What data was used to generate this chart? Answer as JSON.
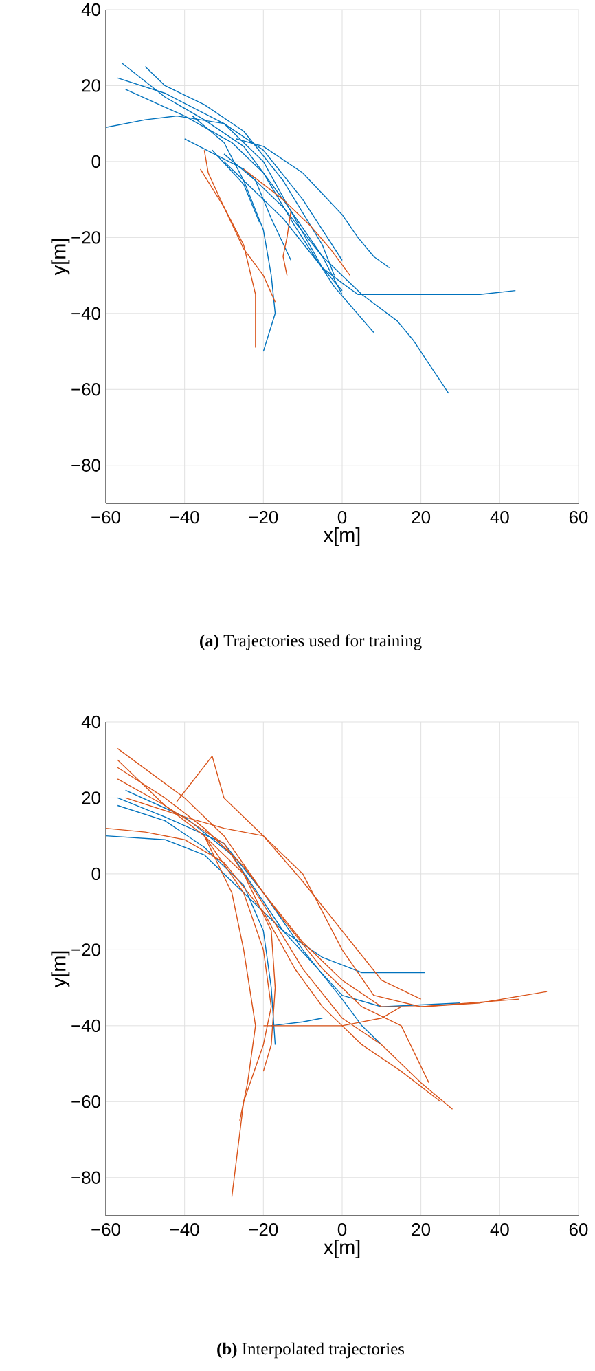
{
  "chart_data": [
    {
      "type": "line",
      "xlabel": "x[m]",
      "ylabel": "y[m]",
      "annotations": [
        "**(a)** Trajectories used for training"
      ],
      "grid": true,
      "xlim": [
        -60,
        60
      ],
      "ylim": [
        -90,
        40
      ],
      "xticks": [
        {
          "value": -60,
          "label": "−60"
        },
        {
          "value": -40,
          "label": "−40"
        },
        {
          "value": -20,
          "label": "−20"
        },
        0,
        20,
        40,
        60
      ],
      "yticks": [
        {
          "value": -80,
          "label": "−80"
        },
        {
          "value": -60,
          "label": "−60"
        },
        {
          "value": -40,
          "label": "−40"
        },
        {
          "value": -20,
          "label": "−20"
        },
        0,
        20,
        40
      ],
      "series": [
        {
          "color": "#0072bd",
          "x": [
            -40,
            -25,
            -15,
            -5,
            5,
            14,
            18,
            27
          ],
          "values": [
            6,
            -2,
            -12,
            -25,
            -35,
            -42,
            -47,
            -61
          ]
        },
        {
          "color": "#0072bd",
          "x": [
            -30,
            -15,
            -5,
            0,
            4,
            20,
            35,
            44
          ],
          "values": [
            0,
            -15,
            -28,
            -32,
            -35,
            -35,
            -35,
            -34
          ]
        },
        {
          "color": "#0072bd",
          "x": [
            -27,
            -20,
            -10,
            0,
            4,
            8,
            12
          ],
          "values": [
            6,
            4,
            -3,
            -14,
            -20,
            -25,
            -28
          ]
        },
        {
          "color": "#0072bd",
          "x": [
            -55,
            -40,
            -28,
            -20,
            -12,
            -2,
            8
          ],
          "values": [
            19,
            12,
            5,
            -3,
            -17,
            -33,
            -45
          ]
        },
        {
          "color": "#0072bd",
          "x": [
            -56,
            -45,
            -35,
            -25,
            -15,
            -5,
            0
          ],
          "values": [
            26,
            17,
            11,
            4,
            -10,
            -25,
            -35
          ]
        },
        {
          "color": "#0072bd",
          "x": [
            -50,
            -45,
            -35,
            -25,
            -15,
            -5,
            -2
          ],
          "values": [
            25,
            20,
            15,
            8,
            -5,
            -22,
            -30
          ]
        },
        {
          "color": "#0072bd",
          "x": [
            -60,
            -50,
            -42,
            -30,
            -20,
            -10,
            0
          ],
          "values": [
            9,
            11,
            12,
            10,
            3,
            -10,
            -26
          ]
        },
        {
          "color": "#0072bd",
          "x": [
            -38,
            -30,
            -25,
            -20,
            -18,
            -17,
            -20
          ],
          "values": [
            12,
            5,
            -5,
            -18,
            -30,
            -40,
            -50
          ]
        },
        {
          "color": "#0072bd",
          "x": [
            -33,
            -25,
            -21
          ],
          "values": [
            3,
            -6,
            -16
          ]
        },
        {
          "color": "#0072bd",
          "x": [
            -30,
            -22,
            -18,
            -13
          ],
          "values": [
            2,
            -5,
            -15,
            -26
          ]
        },
        {
          "color": "#0072bd",
          "x": [
            -57,
            -45,
            -30,
            -20,
            -12,
            -5,
            0
          ],
          "values": [
            22,
            18,
            10,
            0,
            -15,
            -28,
            -34
          ]
        },
        {
          "color": "#d95319",
          "x": [
            -35,
            -34,
            -30,
            -25,
            -22,
            -22
          ],
          "values": [
            3,
            -3,
            -12,
            -22,
            -35,
            -49
          ]
        },
        {
          "color": "#d95319",
          "x": [
            -36,
            -30,
            -25,
            -20,
            -17
          ],
          "values": [
            -2,
            -12,
            -23,
            -30,
            -37
          ]
        },
        {
          "color": "#d95319",
          "x": [
            -25,
            -15,
            -8,
            -3,
            2
          ],
          "values": [
            -2,
            -10,
            -17,
            -23,
            -30
          ]
        },
        {
          "color": "#d95319",
          "x": [
            -13,
            -14,
            -15,
            -14
          ],
          "values": [
            -13,
            -20,
            -25,
            -30
          ]
        }
      ]
    },
    {
      "type": "line",
      "xlabel": "x[m]",
      "ylabel": "y[m]",
      "annotations": [
        "**(b)** Interpolated trajectories"
      ],
      "grid": true,
      "xlim": [
        -60,
        60
      ],
      "ylim": [
        -90,
        40
      ],
      "xticks": [
        {
          "value": -60,
          "label": "−60"
        },
        {
          "value": -40,
          "label": "−40"
        },
        {
          "value": -20,
          "label": "−20"
        },
        0,
        20,
        40,
        60
      ],
      "yticks": [
        {
          "value": -80,
          "label": "−80"
        },
        {
          "value": -60,
          "label": "−60"
        },
        {
          "value": -40,
          "label": "−40"
        },
        {
          "value": -20,
          "label": "−20"
        },
        0,
        20,
        40
      ],
      "series": [
        {
          "color": "#0072bd",
          "x": [
            -60,
            -45,
            -35,
            -25,
            -15,
            -5,
            5,
            10,
            21
          ],
          "values": [
            10,
            9,
            5,
            -5,
            -15,
            -22,
            -26,
            -26,
            -26
          ]
        },
        {
          "color": "#0072bd",
          "x": [
            -57,
            -45,
            -35,
            -25,
            -20,
            -18,
            -17
          ],
          "values": [
            18,
            14,
            7,
            -3,
            -15,
            -30,
            -45
          ]
        },
        {
          "color": "#0072bd",
          "x": [
            -57,
            -45,
            -30,
            -20,
            -10,
            0,
            5,
            10
          ],
          "values": [
            20,
            15,
            8,
            -5,
            -20,
            -33,
            -40,
            -45
          ]
        },
        {
          "color": "#0072bd",
          "x": [
            -55,
            -40,
            -28,
            -15,
            0,
            10,
            30
          ],
          "values": [
            22,
            15,
            5,
            -15,
            -32,
            -35,
            -34
          ]
        },
        {
          "color": "#0072bd",
          "x": [
            -18,
            -10,
            -5
          ],
          "values": [
            -40,
            -39,
            -38
          ]
        },
        {
          "color": "#d95319",
          "x": [
            -57,
            -40,
            -30,
            -20,
            -10,
            0,
            10,
            20,
            35,
            52
          ],
          "values": [
            33,
            20,
            10,
            -5,
            -18,
            -28,
            -35,
            -35,
            -34,
            -31
          ]
        },
        {
          "color": "#d95319",
          "x": [
            -57,
            -45,
            -30,
            -20,
            -10,
            0,
            10,
            20,
            28
          ],
          "values": [
            30,
            18,
            8,
            -8,
            -25,
            -38,
            -45,
            -55,
            -62
          ]
        },
        {
          "color": "#d95319",
          "x": [
            -42,
            -33,
            -30,
            -20,
            -10,
            0,
            10,
            20
          ],
          "values": [
            19,
            31,
            20,
            10,
            -2,
            -15,
            -28,
            -33
          ]
        },
        {
          "color": "#d95319",
          "x": [
            -35,
            -25,
            -20,
            -18,
            -20,
            -25,
            -28
          ],
          "values": [
            10,
            -5,
            -20,
            -35,
            -45,
            -60,
            -85
          ]
        },
        {
          "color": "#d95319",
          "x": [
            -60,
            -50,
            -40,
            -30,
            -20,
            -12,
            -5,
            5,
            15,
            25
          ],
          "values": [
            12,
            11,
            9,
            3,
            -10,
            -25,
            -35,
            -45,
            -52,
            -60
          ]
        },
        {
          "color": "#d95319",
          "x": [
            -57,
            -45,
            -35,
            -25,
            -18,
            -17,
            -18,
            -20
          ],
          "values": [
            25,
            18,
            10,
            0,
            -15,
            -30,
            -45,
            -52
          ]
        },
        {
          "color": "#d95319",
          "x": [
            -20,
            -10,
            0,
            10,
            15
          ],
          "values": [
            -40,
            -40,
            -40,
            -38,
            -35
          ]
        },
        {
          "color": "#d95319",
          "x": [
            -55,
            -40,
            -30,
            -20,
            -10,
            0,
            8,
            20,
            45
          ],
          "values": [
            20,
            15,
            12,
            10,
            0,
            -20,
            -32,
            -35,
            -33
          ]
        },
        {
          "color": "#d95319",
          "x": [
            -57,
            -45,
            -35,
            -25,
            -15,
            -5,
            5,
            15,
            22
          ],
          "values": [
            28,
            20,
            12,
            2,
            -12,
            -25,
            -35,
            -40,
            -55
          ]
        },
        {
          "color": "#d95319",
          "x": [
            -35,
            -28,
            -25,
            -22,
            -24,
            -26
          ],
          "values": [
            10,
            -5,
            -20,
            -40,
            -55,
            -65
          ]
        }
      ]
    }
  ]
}
